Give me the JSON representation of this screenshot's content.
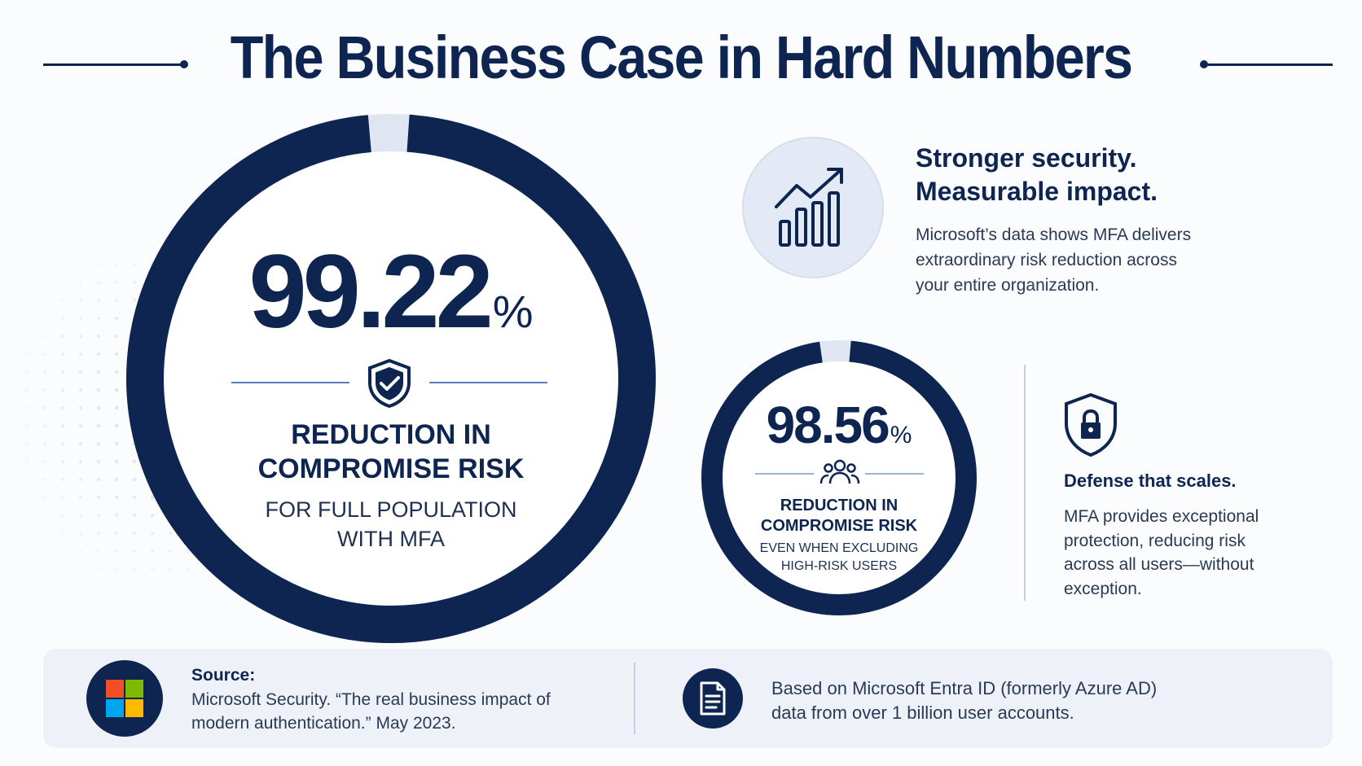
{
  "header": {
    "title": "The Business Case in Hard Numbers"
  },
  "primary_stat": {
    "value": "99.22",
    "unit": "%",
    "label_line1": "REDUCTION IN",
    "label_line2": "COMPROMISE RISK",
    "sub_line1": "FOR FULL POPULATION",
    "sub_line2": "WITH MFA",
    "icon": "shield-check-icon"
  },
  "secondary_stat": {
    "value": "98.56",
    "unit": "%",
    "label_line1": "REDUCTION IN",
    "label_line2": "COMPROMISE RISK",
    "sub_line1": "EVEN WHEN EXCLUDING",
    "sub_line2": "HIGH-RISK USERS",
    "icon": "users-icon"
  },
  "impact": {
    "heading_line1": "Stronger security.",
    "heading_line2": "Measurable impact.",
    "text_line1": "Microsoft’s data shows MFA delivers",
    "text_line2": "extraordinary risk reduction across",
    "text_line3": "your entire organization.",
    "icon": "growth-chart-icon"
  },
  "scale": {
    "heading": "Defense that scales.",
    "text_line1": "MFA provides exceptional",
    "text_line2": "protection, reducing risk",
    "text_line3": "across all users—without",
    "text_line4": "exception.",
    "icon": "shield-lock-icon"
  },
  "footer": {
    "source_title": "Source:",
    "source_line1": "Microsoft Security. “The real business impact of",
    "source_line2": "modern authentication.” May 2023.",
    "based_line1": "Based on Microsoft Entra ID (formerly Azure AD)",
    "based_line2": "data from over 1 billion user accounts.",
    "logo_icon": "microsoft-logo-icon",
    "document_icon": "document-icon"
  },
  "colors": {
    "navy": "#0d2550",
    "ring_gap": "#dfe6f1",
    "ms_red": "#f25022",
    "ms_green": "#7fba00",
    "ms_blue": "#00a4ef",
    "ms_yellow": "#ffb900"
  }
}
